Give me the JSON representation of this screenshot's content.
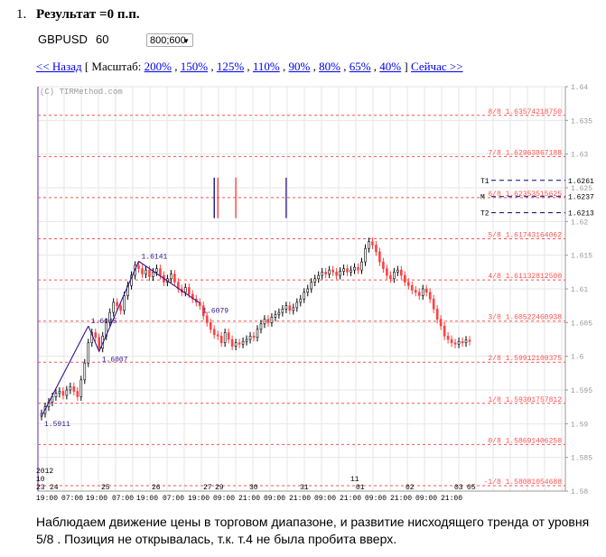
{
  "item_number": "1.",
  "title": "Результат =0 п.п.",
  "symbol": "GBPUSD",
  "period": "60",
  "size_select": {
    "value": "800;600"
  },
  "nav": {
    "back": "<< Назад",
    "scale_open": "[ Масштаб:",
    "scales": [
      "200%",
      "150%",
      "125%",
      "110%",
      "90%",
      "80%",
      "65%",
      "40%"
    ],
    "scale_close": "]",
    "now": "Сейчас >>"
  },
  "caption": "Наблюдаем движение цены в торговом диапазоне, и развитие нисходящего тренда от уровня 5/8 . Позиция не открывалась, т.к. т.4 не была пробита вверх.",
  "colors": {
    "up": "#000000",
    "down": "#ff4040",
    "murrey": "#ff5050",
    "wave": "#33148c",
    "target": "#000080",
    "vline": "#7a52b8",
    "grid": "#e6e6e6"
  },
  "chart_data": {
    "type": "candlestick",
    "watermark": "(C) TIRMethod.com",
    "ylim": [
      1.58,
      1.64
    ],
    "y_ticks": [
      "1.64",
      "1.635",
      "1.63",
      "1.625",
      "1.62",
      "1.615",
      "1.61",
      "1.605",
      "1.6",
      "1.595",
      "1.59",
      "1.585",
      "1.58"
    ],
    "y_tick_values": [
      1.64,
      1.635,
      1.63,
      1.625,
      1.62,
      1.615,
      1.61,
      1.605,
      1.6,
      1.595,
      1.59,
      1.585,
      1.58
    ],
    "x_date_labels": [
      "2012",
      "10",
      "23",
      "24",
      "25",
      "26",
      "27",
      "29",
      "30",
      "31",
      "11",
      "01",
      "02",
      "03",
      "05"
    ],
    "x_time_labels": [
      "19:00",
      "07:00",
      "19:00",
      "07:00",
      "19:00",
      "07:00",
      "19:00",
      "09:00",
      "21:00",
      "09:00",
      "21:00",
      "09:00",
      "21:00",
      "09:00",
      "21:00",
      "09:00",
      "21:00"
    ],
    "murrey_levels": [
      {
        "label": "8/8  1.63574218750",
        "value": 1.63574
      },
      {
        "label": "7/8  1.62963867188",
        "value": 1.62964
      },
      {
        "label": "6/8  1.62353515625",
        "value": 1.62354
      },
      {
        "label": "5/8  1.61743164062",
        "value": 1.61743
      },
      {
        "label": "4/8  1.61132812500",
        "value": 1.61133
      },
      {
        "label": "3/8  1.60522460938",
        "value": 1.60522
      },
      {
        "label": "2/8  1.59912109375",
        "value": 1.59912
      },
      {
        "label": "1/8  1.59301757812",
        "value": 1.59302
      },
      {
        "label": "0/8  1.58691406250",
        "value": 1.58691
      },
      {
        "label": "-1/8  1.58081054688",
        "value": 1.58081
      }
    ],
    "targets": [
      {
        "name": "T1",
        "value": 1.6261,
        "label": "1.6261"
      },
      {
        "name": "M",
        "value": 1.6237,
        "label": "1.6237"
      },
      {
        "name": "T2",
        "value": 1.6213,
        "label": "1.6213"
      }
    ],
    "wave_points": [
      {
        "label": "1.5911",
        "value": 1.5911,
        "bar": 0
      },
      {
        "label": "1.6045",
        "value": 1.6045,
        "bar": 13
      },
      {
        "label": "1.6007",
        "value": 1.6007,
        "bar": 16
      },
      {
        "label": "1.6141",
        "value": 1.6141,
        "bar": 27
      },
      {
        "label": "1.6079",
        "value": 1.6079,
        "bar": 44
      }
    ],
    "bar_count": 120,
    "closes": [
      1.5915,
      1.5925,
      1.5932,
      1.594,
      1.5945,
      1.5948,
      1.5942,
      1.595,
      1.5955,
      1.5948,
      1.594,
      1.5965,
      1.599,
      1.602,
      1.6035,
      1.6028,
      1.6012,
      1.603,
      1.605,
      1.6065,
      1.608,
      1.6075,
      1.6068,
      1.609,
      1.6105,
      1.612,
      1.6135,
      1.613,
      1.6122,
      1.6128,
      1.6118,
      1.6125,
      1.613,
      1.612,
      1.611,
      1.6115,
      1.6122,
      1.611,
      1.61,
      1.6095,
      1.6102,
      1.6092,
      1.6085,
      1.608,
      1.6075,
      1.606,
      1.605,
      1.604,
      1.6032,
      1.603,
      1.602,
      1.6035,
      1.6025,
      1.6015,
      1.602,
      1.6018,
      1.6022,
      1.6025,
      1.603,
      1.6028,
      1.604,
      1.6048,
      1.6055,
      1.605,
      1.6058,
      1.6062,
      1.6065,
      1.607,
      1.6075,
      1.6068,
      1.6072,
      1.608,
      1.6085,
      1.6095,
      1.61,
      1.611,
      1.6115,
      1.612,
      1.6125,
      1.6122,
      1.6128,
      1.6125,
      1.612,
      1.6126,
      1.613,
      1.6125,
      1.6128,
      1.6132,
      1.6128,
      1.614,
      1.616,
      1.617,
      1.6165,
      1.6155,
      1.614,
      1.613,
      1.612,
      1.6115,
      1.6125,
      1.6128,
      1.612,
      1.611,
      1.6105,
      1.6098,
      1.6095,
      1.609,
      1.61,
      1.6095,
      1.6085,
      1.607,
      1.6055,
      1.6045,
      1.603,
      1.6025,
      1.602,
      1.6018,
      1.6022,
      1.602,
      1.6024,
      1.6022
    ]
  }
}
